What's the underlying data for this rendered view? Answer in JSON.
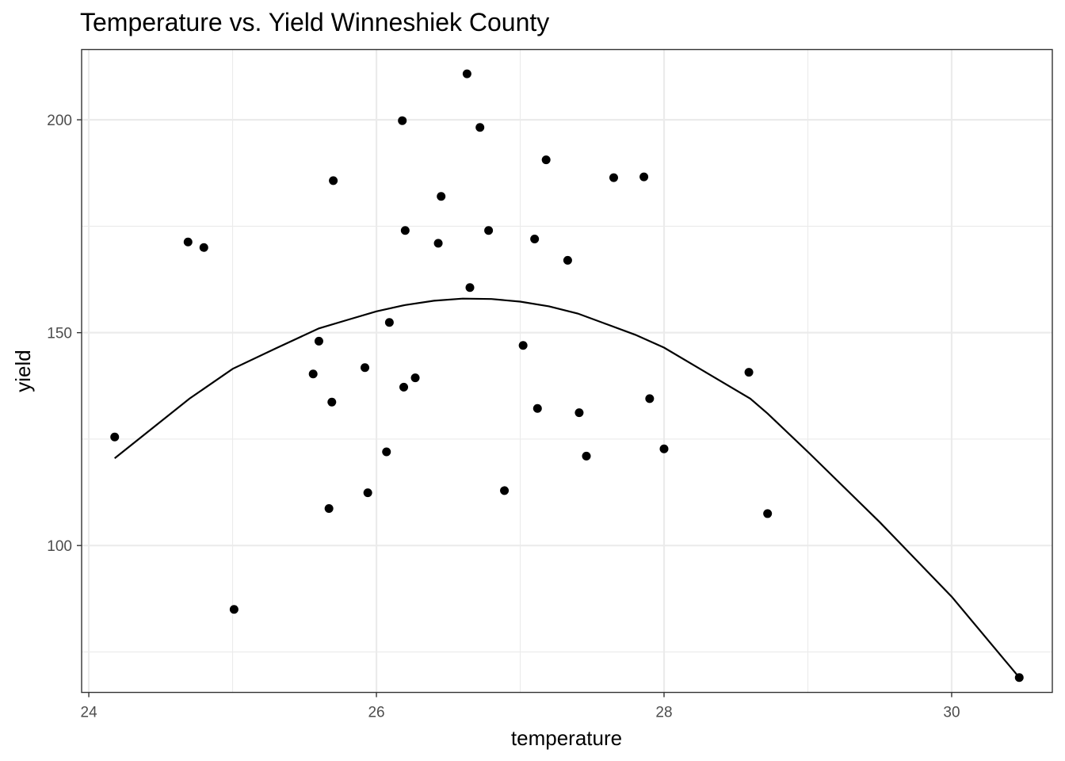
{
  "chart_data": {
    "type": "scatter",
    "title": "Temperature vs. Yield Winneshiek County",
    "xlabel": "temperature",
    "ylabel": "yield",
    "xlim": [
      23.95,
      30.7
    ],
    "ylim": [
      65.5,
      216.5
    ],
    "x_ticks": [
      24,
      26,
      28,
      30
    ],
    "x_tick_labels": [
      "24",
      "26",
      "28",
      "30"
    ],
    "x_minor": [
      25,
      27,
      29
    ],
    "y_ticks": [
      100,
      150,
      200
    ],
    "y_tick_labels": [
      "100",
      "150",
      "200"
    ],
    "y_minor": [
      75,
      125,
      175
    ],
    "grid": true,
    "legend": "none",
    "point_color": "#000000",
    "line_color": "#000000",
    "points": [
      {
        "x": 24.18,
        "y": 125.5
      },
      {
        "x": 24.69,
        "y": 171.3
      },
      {
        "x": 24.8,
        "y": 170.0
      },
      {
        "x": 25.01,
        "y": 85.0
      },
      {
        "x": 25.56,
        "y": 140.3
      },
      {
        "x": 25.6,
        "y": 148.0
      },
      {
        "x": 25.67,
        "y": 108.7
      },
      {
        "x": 25.69,
        "y": 133.7
      },
      {
        "x": 25.7,
        "y": 185.7
      },
      {
        "x": 25.92,
        "y": 141.8
      },
      {
        "x": 25.94,
        "y": 112.4
      },
      {
        "x": 26.07,
        "y": 122.0
      },
      {
        "x": 26.09,
        "y": 152.4
      },
      {
        "x": 26.18,
        "y": 199.8
      },
      {
        "x": 26.19,
        "y": 137.2
      },
      {
        "x": 26.2,
        "y": 174.0
      },
      {
        "x": 26.27,
        "y": 139.4
      },
      {
        "x": 26.43,
        "y": 171.0
      },
      {
        "x": 26.45,
        "y": 182.0
      },
      {
        "x": 26.63,
        "y": 210.8
      },
      {
        "x": 26.65,
        "y": 160.6
      },
      {
        "x": 26.72,
        "y": 198.2
      },
      {
        "x": 26.78,
        "y": 174.0
      },
      {
        "x": 26.89,
        "y": 112.9
      },
      {
        "x": 27.02,
        "y": 147.0
      },
      {
        "x": 27.1,
        "y": 172.0
      },
      {
        "x": 27.12,
        "y": 132.2
      },
      {
        "x": 27.18,
        "y": 190.6
      },
      {
        "x": 27.33,
        "y": 167.0
      },
      {
        "x": 27.41,
        "y": 131.2
      },
      {
        "x": 27.46,
        "y": 121.0
      },
      {
        "x": 27.65,
        "y": 186.4
      },
      {
        "x": 27.86,
        "y": 186.6
      },
      {
        "x": 27.9,
        "y": 134.5
      },
      {
        "x": 28.0,
        "y": 122.7
      },
      {
        "x": 28.59,
        "y": 140.7
      },
      {
        "x": 28.72,
        "y": 107.5
      },
      {
        "x": 30.47,
        "y": 69.0
      }
    ],
    "fit_line": {
      "x": [
        24.18,
        24.7,
        25.0,
        25.3,
        25.6,
        25.8,
        26.0,
        26.2,
        26.4,
        26.6,
        26.8,
        27.0,
        27.2,
        27.4,
        27.6,
        27.8,
        28.0,
        28.3,
        28.6,
        28.72,
        29.0,
        29.5,
        30.0,
        30.47
      ],
      "y": [
        120.5,
        134.5,
        141.5,
        146.3,
        151.0,
        153.0,
        155.0,
        156.5,
        157.5,
        158.0,
        157.9,
        157.3,
        156.2,
        154.5,
        152.0,
        149.5,
        146.5,
        140.5,
        134.5,
        131.0,
        122.0,
        105.5,
        88.0,
        69.0
      ]
    }
  }
}
